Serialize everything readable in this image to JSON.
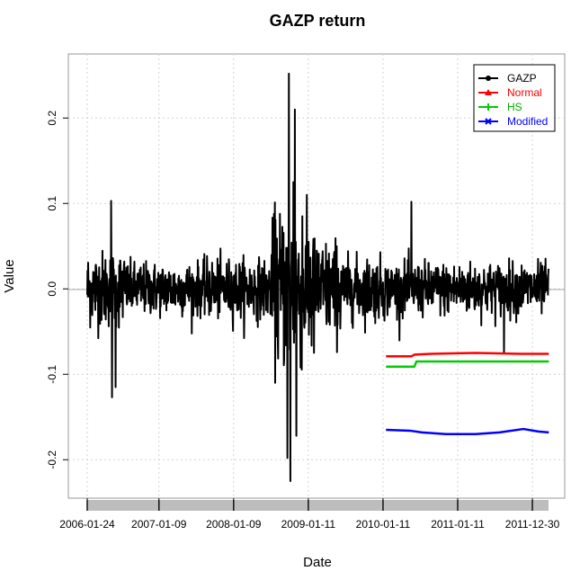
{
  "chart_data": {
    "type": "line",
    "title": "GAZP return",
    "xlabel": "Date",
    "ylabel": "Value",
    "ylim": [
      -0.245,
      0.275
    ],
    "x_ticks": [
      "2006-01-24",
      "2007-01-09",
      "2008-01-09",
      "2009-01-11",
      "2010-01-11",
      "2011-01-11",
      "2011-12-30"
    ],
    "x_tick_index": [
      0,
      240,
      490,
      740,
      990,
      1240,
      1490
    ],
    "n_points": 1545,
    "y_ticks": [
      -0.2,
      -0.1,
      0.0,
      0.1,
      0.2
    ],
    "y_tick_labels": [
      "-0.2",
      "-0.1",
      "0.0",
      "0.1",
      "0.2"
    ],
    "grid": true,
    "legend_position": "top-right",
    "series": [
      {
        "name": "GAZP",
        "color": "#000000",
        "marker": "circle",
        "kind": "return",
        "highlights": [
          {
            "index": 80,
            "value": 0.103
          },
          {
            "index": 83,
            "value": -0.127
          },
          {
            "index": 95,
            "value": -0.115
          },
          {
            "index": 675,
            "value": 0.252
          },
          {
            "index": 670,
            "value": -0.198
          },
          {
            "index": 680,
            "value": -0.225
          },
          {
            "index": 695,
            "value": 0.21
          },
          {
            "index": 700,
            "value": -0.172
          },
          {
            "index": 690,
            "value": 0.125
          },
          {
            "index": 720,
            "value": 0.085
          },
          {
            "index": 1085,
            "value": 0.102
          },
          {
            "index": 1395,
            "value": -0.075
          }
        ]
      },
      {
        "name": "Normal",
        "color": "#ff0000",
        "marker": "triangle",
        "x_range": [
          1000,
          1545
        ],
        "points": [
          [
            1000,
            -0.079
          ],
          [
            1085,
            -0.079
          ],
          [
            1095,
            -0.077
          ],
          [
            1150,
            -0.076
          ],
          [
            1300,
            -0.075
          ],
          [
            1450,
            -0.076
          ],
          [
            1545,
            -0.076
          ]
        ]
      },
      {
        "name": "HS",
        "color": "#00cc00",
        "marker": "plus",
        "x_range": [
          1000,
          1545
        ],
        "points": [
          [
            1000,
            -0.091
          ],
          [
            1095,
            -0.091
          ],
          [
            1102,
            -0.085
          ],
          [
            1545,
            -0.085
          ]
        ]
      },
      {
        "name": "Modified",
        "color": "#0000ff",
        "marker": "x",
        "x_range": [
          1000,
          1545
        ],
        "points": [
          [
            1000,
            -0.165
          ],
          [
            1080,
            -0.166
          ],
          [
            1120,
            -0.168
          ],
          [
            1200,
            -0.17
          ],
          [
            1300,
            -0.17
          ],
          [
            1380,
            -0.168
          ],
          [
            1460,
            -0.164
          ],
          [
            1510,
            -0.167
          ],
          [
            1545,
            -0.168
          ]
        ]
      }
    ]
  }
}
